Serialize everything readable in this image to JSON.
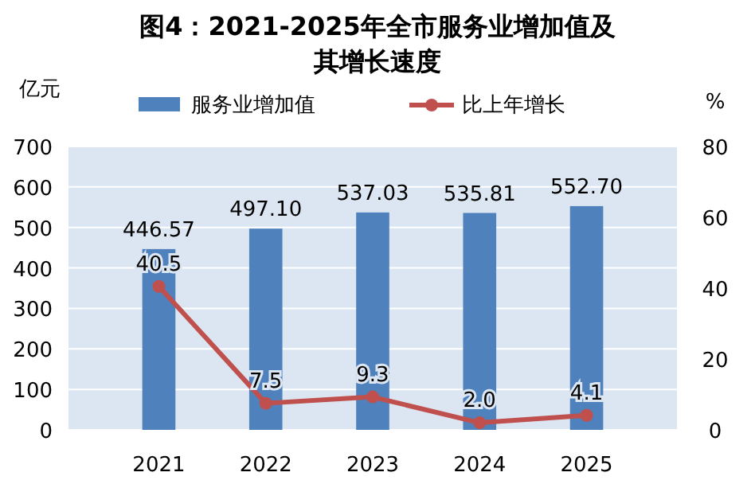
{
  "chart_data": {
    "type": "bar",
    "title": "图4：2021-2025年全市服务业增加值及其增长速度",
    "ylabel": "亿元",
    "y2label": "%",
    "categories": [
      "2021",
      "2022",
      "2023",
      "2024",
      "2025"
    ],
    "series": [
      {
        "name": "服务业增加值",
        "color": "#4f81bd",
        "values": [
          446.57,
          497.1,
          537.03,
          535.81,
          552.7
        ],
        "value_labels": [
          "446.57",
          "497.10",
          "537.03",
          "535.81",
          "552.70"
        ]
      },
      {
        "name": "比上年增长",
        "type": "line",
        "axis": "y2",
        "color": "#c0504d",
        "marker": "circle",
        "values": [
          40.5,
          7.5,
          9.3,
          2.0,
          4.1
        ],
        "value_labels": [
          "40.5",
          "7.5",
          "9.3",
          "2.0",
          "4.1"
        ]
      }
    ],
    "ylim": [
      0,
      700
    ],
    "yticks": [
      0,
      100,
      200,
      300,
      400,
      500,
      600,
      700
    ],
    "y2lim": [
      0,
      80
    ],
    "y2ticks": [
      0,
      20,
      40,
      60,
      80
    ],
    "grid": "y",
    "legend": "top"
  }
}
